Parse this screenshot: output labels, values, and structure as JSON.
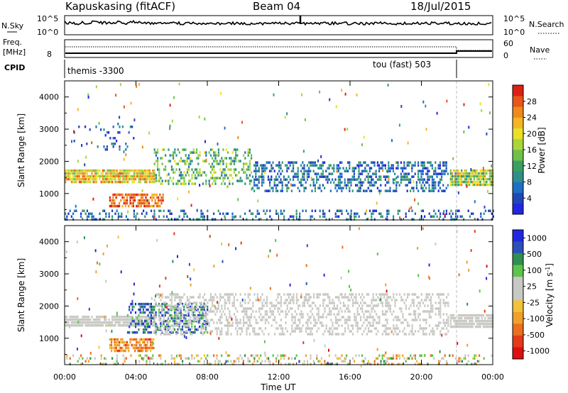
{
  "header": {
    "station": "Kapuskasing (fitACF)",
    "beam": "Beam 04",
    "date": "18/Jul/2015"
  },
  "nsky_panel": {
    "left_label": "N.Sky",
    "left_ticks": [
      "10^5",
      "10^0"
    ],
    "right_ticks": [
      "10^5",
      "10^0"
    ],
    "right_label": "N.Search"
  },
  "freq_panel": {
    "left_label_1": "Freq.",
    "left_label_2": "[MHz]",
    "left_ticks": [
      "8"
    ],
    "right_ticks": [
      "60",
      "0"
    ],
    "right_label": "Nave",
    "cpid_label": "CPID",
    "cpid_1": "themis -3300",
    "cpid_2": "tou (fast) 503"
  },
  "chart_data": [
    {
      "type": "heatmap",
      "name": "power",
      "ylabel": "Slant Range [km]",
      "xlabel": "Time UT",
      "x_ticks": [
        "00:00",
        "04:00",
        "08:00",
        "12:00",
        "16:00",
        "20:00",
        "00:00"
      ],
      "xlim_hours": [
        0,
        24
      ],
      "y_ticks": [
        1000,
        2000,
        3000,
        4000
      ],
      "ylim": [
        180,
        4500
      ],
      "colorbar": {
        "label": "Power [dB]",
        "ticks": [
          "4",
          "8",
          "12",
          "16",
          "20",
          "24",
          "28"
        ],
        "colors": [
          "#1f28e0",
          "#2146b8",
          "#1e6ec4",
          "#2e8f8a",
          "#3aa060",
          "#6fc14a",
          "#a9d63a",
          "#e9e028",
          "#f4b623",
          "#ef8a1c",
          "#e8571a",
          "#dd2014"
        ]
      },
      "scatter_bands": [
        {
          "t0": 0.0,
          "t1": 5.0,
          "r0": 1350,
          "r1": 1750,
          "dens": 0.85,
          "lvl": [
            5,
            10
          ]
        },
        {
          "t0": 2.5,
          "t1": 5.5,
          "r0": 600,
          "r1": 1000,
          "dens": 0.7,
          "lvl": [
            8,
            11
          ]
        },
        {
          "t0": 5.0,
          "t1": 10.5,
          "r0": 1300,
          "r1": 2400,
          "dens": 0.35,
          "lvl": [
            2,
            7
          ]
        },
        {
          "t0": 10.5,
          "t1": 21.5,
          "r0": 1100,
          "r1": 2000,
          "dens": 0.45,
          "lvl": [
            0,
            4
          ]
        },
        {
          "t0": 21.6,
          "t1": 24.0,
          "r0": 1300,
          "r1": 1750,
          "dens": 0.9,
          "lvl": [
            3,
            9
          ]
        },
        {
          "t0": 0.0,
          "t1": 24.0,
          "r0": 200,
          "r1": 500,
          "dens": 0.25,
          "lvl": [
            0,
            4
          ]
        },
        {
          "t0": 0.5,
          "t1": 4.0,
          "r0": 2400,
          "r1": 3200,
          "dens": 0.1,
          "lvl": [
            0,
            3
          ]
        }
      ]
    },
    {
      "type": "heatmap",
      "name": "velocity",
      "ylabel": "Slant Range [km]",
      "xlabel": "Time UT",
      "x_ticks": [
        "00:00",
        "04:00",
        "08:00",
        "12:00",
        "16:00",
        "20:00",
        "00:00"
      ],
      "xlim_hours": [
        0,
        24
      ],
      "y_ticks": [
        1000,
        2000,
        3000,
        4000
      ],
      "ylim": [
        180,
        4500
      ],
      "colorbar": {
        "label": "Velocity [m s^-1]",
        "ticks": [
          "1000",
          "500",
          "100",
          "25",
          "-25",
          "-100",
          "-500",
          "-1000"
        ],
        "colors": [
          "#1f28e0",
          "#2c50b8",
          "#2e8f50",
          "#5cc44a",
          "#c8c8c4",
          "#c8c8c4",
          "#f2c33a",
          "#f0a02a",
          "#ea6f1f",
          "#e43a17",
          "#dc1010"
        ]
      },
      "scatter_bands": [
        {
          "t0": 0.0,
          "t1": 5.0,
          "r0": 1350,
          "r1": 1700,
          "dens": 0.85,
          "lvl": [
            4,
            5
          ]
        },
        {
          "t0": 3.5,
          "t1": 8.0,
          "r0": 1200,
          "r1": 2100,
          "dens": 0.5,
          "lvl": [
            0,
            3
          ]
        },
        {
          "t0": 2.5,
          "t1": 5.0,
          "r0": 600,
          "r1": 1000,
          "dens": 0.7,
          "lvl": [
            6,
            9
          ]
        },
        {
          "t0": 5.0,
          "t1": 21.5,
          "r0": 1100,
          "r1": 2400,
          "dens": 0.4,
          "lvl": [
            4,
            5
          ]
        },
        {
          "t0": 21.6,
          "t1": 24.0,
          "r0": 1350,
          "r1": 1750,
          "dens": 0.9,
          "lvl": [
            4,
            5
          ]
        },
        {
          "t0": 0.0,
          "t1": 24.0,
          "r0": 200,
          "r1": 500,
          "dens": 0.25,
          "lvl": [
            2,
            8
          ]
        }
      ]
    }
  ]
}
